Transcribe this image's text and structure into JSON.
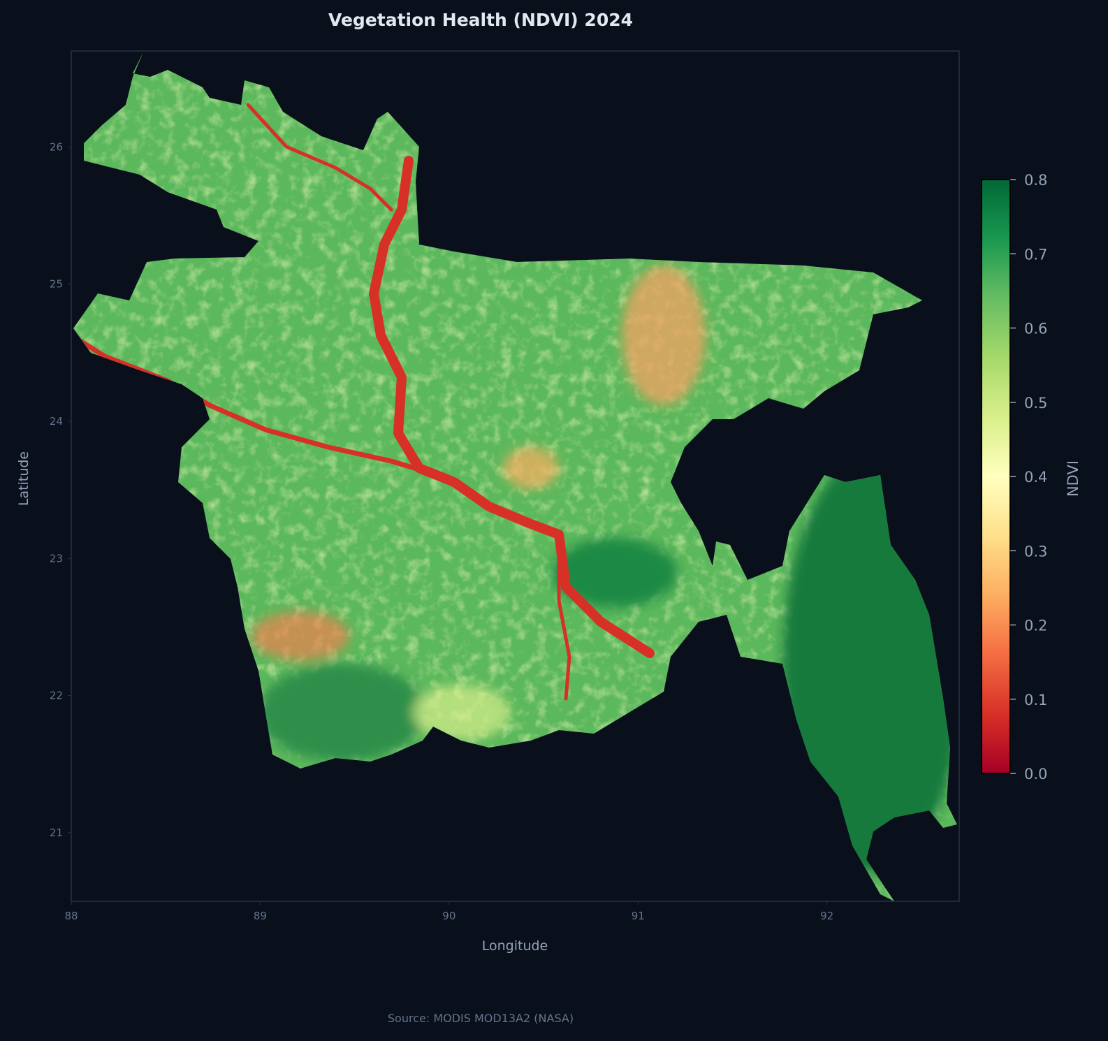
{
  "title": "Vegetation Health (NDVI) 2024",
  "source": "Source: MODIS MOD13A2 (NASA)",
  "colors": {
    "background": "#0a0f1c",
    "axes_spine": "#2a3245",
    "text": "#94a3b8",
    "tick_text": "#64748b",
    "title": "#e2e8f0"
  },
  "chart_data": {
    "type": "heatmap",
    "title": "Vegetation Health (NDVI) 2024",
    "xlabel": "Longitude",
    "ylabel": "Latitude",
    "xlim": [
      88,
      92.7
    ],
    "ylim": [
      20.5,
      26.7
    ],
    "xticks": [
      88,
      89,
      90,
      91,
      92
    ],
    "yticks": [
      21,
      22,
      23,
      24,
      25,
      26
    ],
    "grid": false,
    "colormap": "RdYlGn",
    "colorbar": {
      "label": "NDVI",
      "vmin": 0.0,
      "vmax": 0.8,
      "ticks": [
        "0.0",
        "0.1",
        "0.2",
        "0.3",
        "0.4",
        "0.5",
        "0.6",
        "0.7",
        "0.8"
      ],
      "placement": "right"
    }
  }
}
